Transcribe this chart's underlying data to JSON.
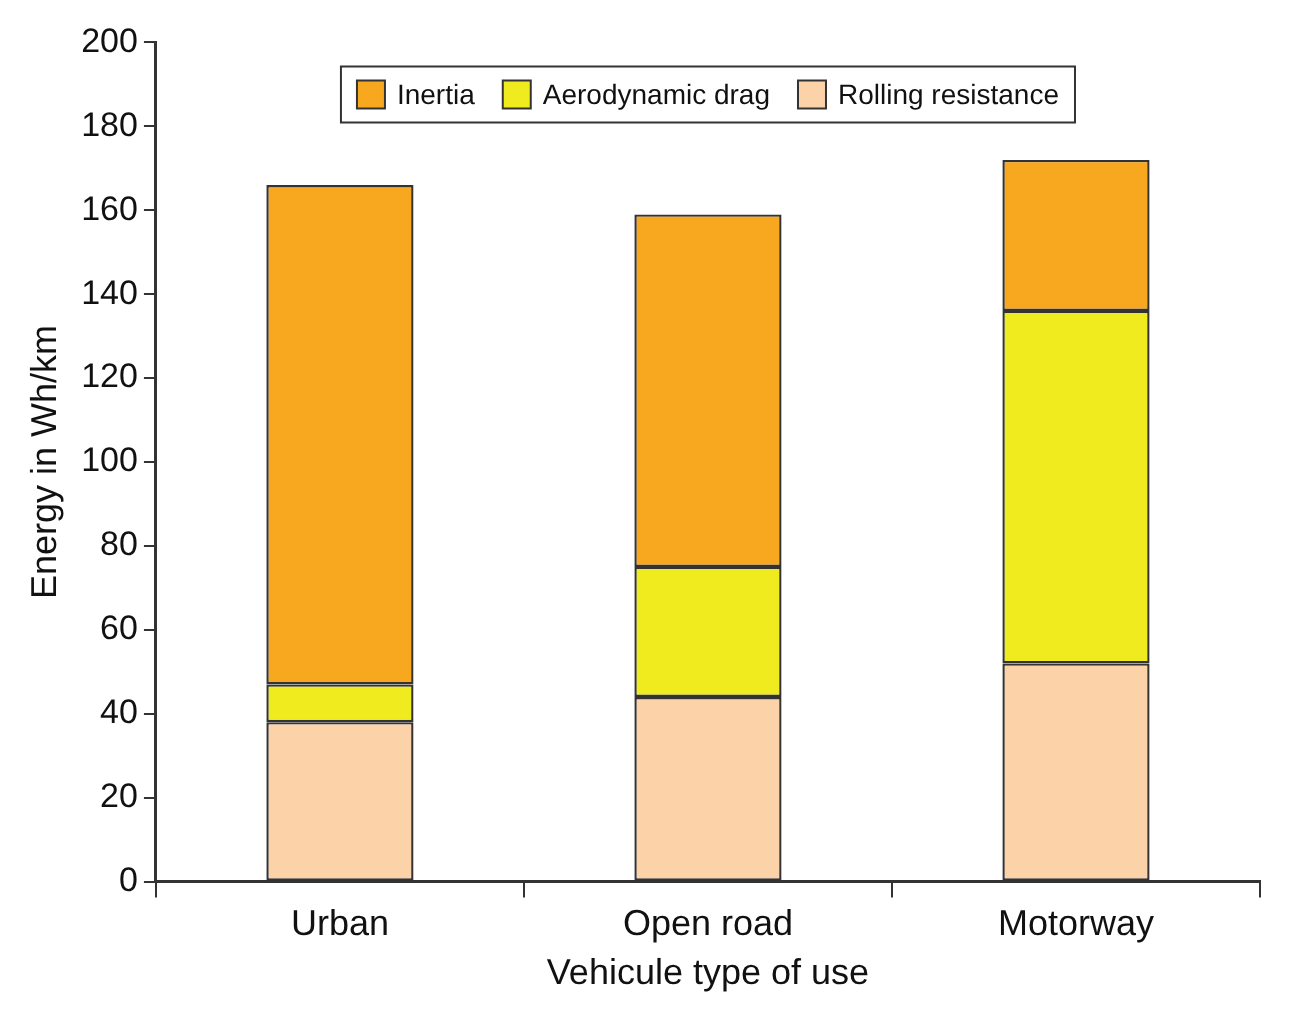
{
  "chart_data": {
    "type": "bar",
    "stacked": true,
    "xlabel": "Vehicule type of use",
    "ylabel": "Energy in Wh/km",
    "categories": [
      "Urban",
      "Open road",
      "Motorway"
    ],
    "series": [
      {
        "name": "Rolling resistance",
        "color": "#fcd3a8",
        "values": [
          38,
          44,
          52
        ]
      },
      {
        "name": "Aerodynamic drag",
        "color": "#f0eb1e",
        "values": [
          9,
          31,
          84
        ]
      },
      {
        "name": "Inertia",
        "color": "#f8a81e",
        "values": [
          119,
          84,
          36
        ]
      }
    ],
    "ylim": [
      0,
      200
    ],
    "yticks": [
      0,
      20,
      40,
      60,
      80,
      100,
      120,
      140,
      160,
      180,
      200
    ],
    "grid": false,
    "legend": "top"
  }
}
